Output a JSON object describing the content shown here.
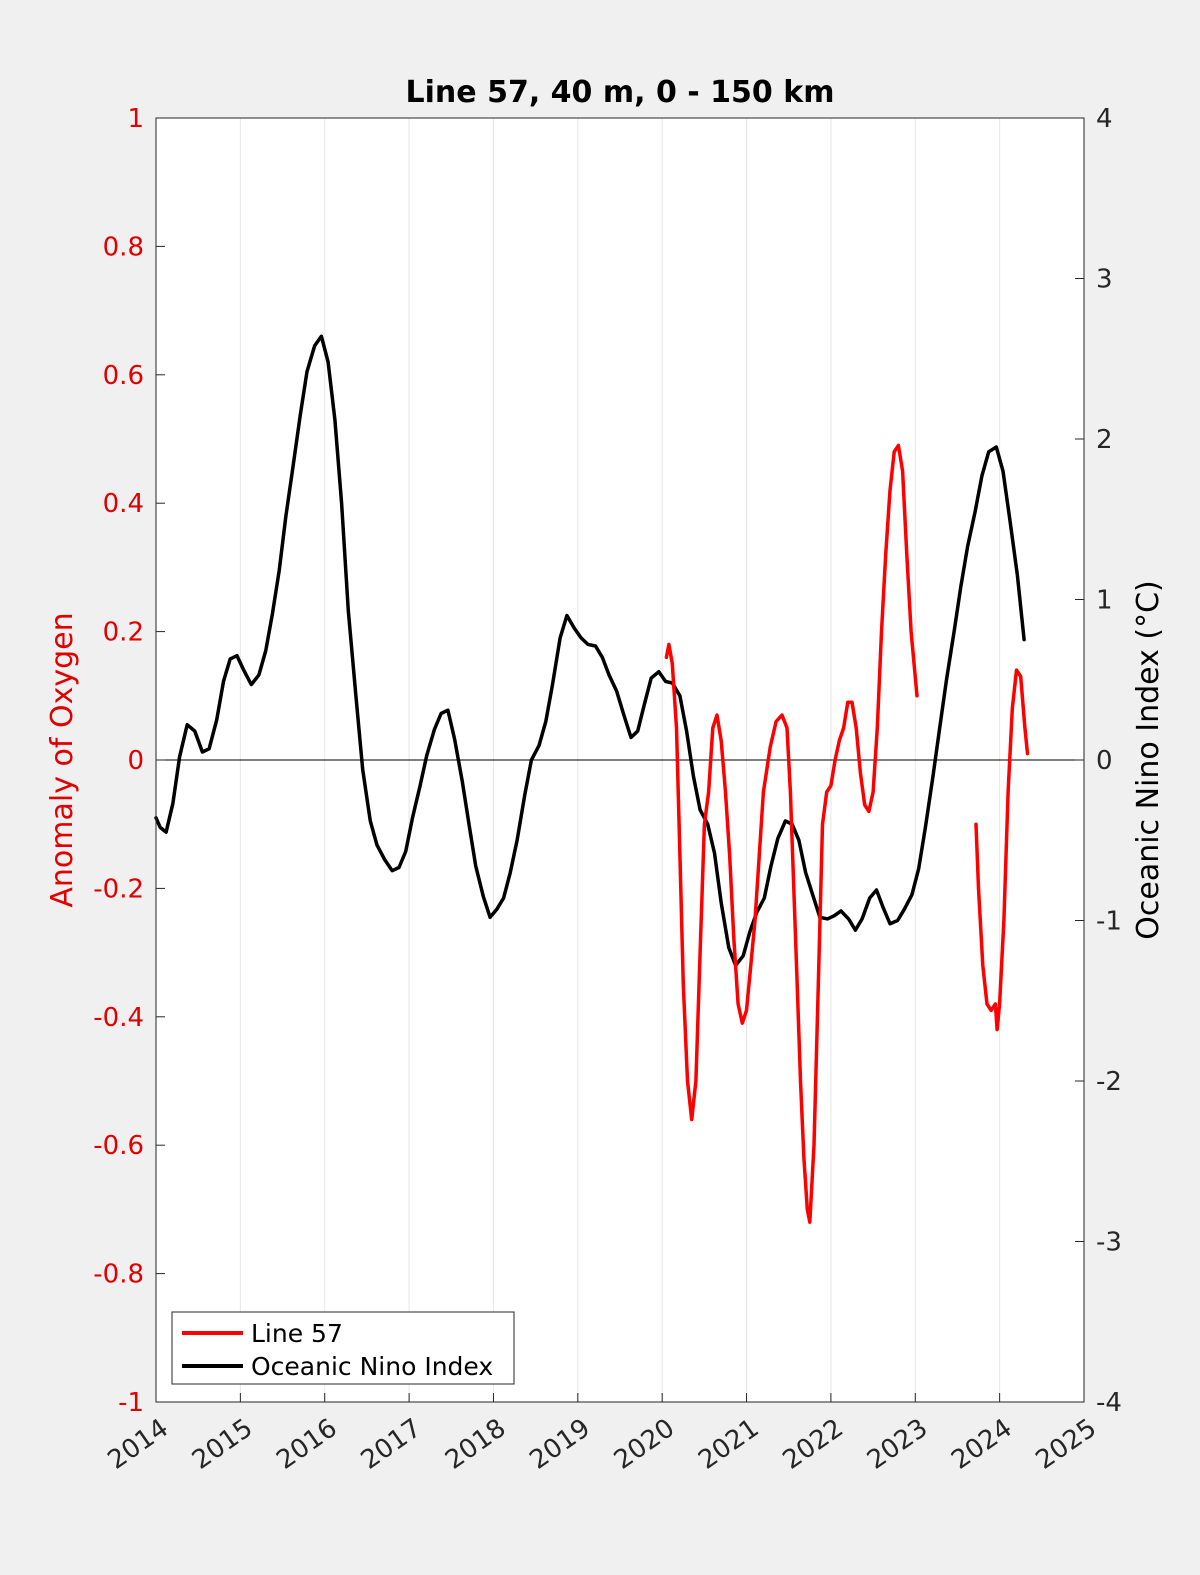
{
  "colors": {
    "figure_background": "#f0f0f0",
    "axes_background": "#ffffff",
    "line57": "#ff0000",
    "oni": "#000000",
    "left_axis_text": "#e00000",
    "right_axis_text": "#000000"
  },
  "chart_data": {
    "type": "line",
    "title": "Line 57, 40 m, 0 - 150 km",
    "xlabel": "",
    "xlim": [
      2014,
      2025
    ],
    "x_ticks": [
      "2014",
      "2015",
      "2016",
      "2017",
      "2018",
      "2019",
      "2020",
      "2021",
      "2022",
      "2023",
      "2024",
      "2025"
    ],
    "x_grid": true,
    "legend_position": "bottom-left",
    "left_axis": {
      "label": "Anomaly of Oxygen",
      "ylim": [
        -1,
        1
      ],
      "ticks": [
        "-1",
        "-0.8",
        "-0.6",
        "-0.4",
        "-0.2",
        "0",
        "0.2",
        "0.4",
        "0.6",
        "0.8",
        "1"
      ]
    },
    "right_axis": {
      "label": "Oceanic Nino Index (°C)",
      "ylim": [
        -4,
        4
      ],
      "ticks": [
        "-4",
        "-3",
        "-2",
        "-1",
        "0",
        "1",
        "2",
        "3",
        "4"
      ]
    },
    "series": [
      {
        "name": "Line 57",
        "axis": "left",
        "color": "#ff0000",
        "segments": [
          [
            [
              2020.05,
              0.16
            ],
            [
              2020.08,
              0.18
            ],
            [
              2020.12,
              0.15
            ],
            [
              2020.17,
              0.05
            ],
            [
              2020.2,
              -0.1
            ],
            [
              2020.25,
              -0.35
            ],
            [
              2020.3,
              -0.5
            ],
            [
              2020.35,
              -0.56
            ],
            [
              2020.4,
              -0.5
            ],
            [
              2020.45,
              -0.3
            ],
            [
              2020.5,
              -0.1
            ],
            [
              2020.55,
              -0.05
            ],
            [
              2020.6,
              0.05
            ],
            [
              2020.65,
              0.07
            ],
            [
              2020.7,
              0.03
            ],
            [
              2020.75,
              -0.05
            ],
            [
              2020.8,
              -0.15
            ],
            [
              2020.85,
              -0.28
            ],
            [
              2020.9,
              -0.38
            ],
            [
              2020.95,
              -0.41
            ],
            [
              2021.0,
              -0.39
            ],
            [
              2021.05,
              -0.32
            ],
            [
              2021.1,
              -0.25
            ],
            [
              2021.15,
              -0.15
            ],
            [
              2021.2,
              -0.05
            ],
            [
              2021.28,
              0.02
            ],
            [
              2021.35,
              0.06
            ],
            [
              2021.42,
              0.07
            ],
            [
              2021.48,
              0.05
            ],
            [
              2021.52,
              -0.05
            ],
            [
              2021.56,
              -0.2
            ],
            [
              2021.6,
              -0.35
            ],
            [
              2021.64,
              -0.5
            ],
            [
              2021.68,
              -0.62
            ],
            [
              2021.72,
              -0.7
            ],
            [
              2021.75,
              -0.72
            ],
            [
              2021.8,
              -0.6
            ],
            [
              2021.85,
              -0.35
            ],
            [
              2021.9,
              -0.1
            ],
            [
              2021.95,
              -0.05
            ],
            [
              2022.0,
              -0.04
            ],
            [
              2022.05,
              0.0
            ],
            [
              2022.1,
              0.03
            ],
            [
              2022.15,
              0.05
            ],
            [
              2022.2,
              0.09
            ],
            [
              2022.25,
              0.09
            ],
            [
              2022.3,
              0.05
            ],
            [
              2022.35,
              -0.02
            ],
            [
              2022.4,
              -0.07
            ],
            [
              2022.45,
              -0.08
            ],
            [
              2022.5,
              -0.05
            ],
            [
              2022.55,
              0.05
            ],
            [
              2022.6,
              0.2
            ],
            [
              2022.65,
              0.32
            ],
            [
              2022.7,
              0.42
            ],
            [
              2022.75,
              0.48
            ],
            [
              2022.8,
              0.49
            ],
            [
              2022.85,
              0.45
            ],
            [
              2022.9,
              0.32
            ],
            [
              2022.95,
              0.2
            ],
            [
              2023.02,
              0.1
            ]
          ],
          [
            [
              2023.72,
              -0.1
            ],
            [
              2023.75,
              -0.2
            ],
            [
              2023.8,
              -0.32
            ],
            [
              2023.85,
              -0.38
            ],
            [
              2023.9,
              -0.39
            ],
            [
              2023.95,
              -0.38
            ],
            [
              2023.97,
              -0.42
            ],
            [
              2024.0,
              -0.38
            ],
            [
              2024.05,
              -0.25
            ],
            [
              2024.1,
              -0.05
            ],
            [
              2024.15,
              0.08
            ],
            [
              2024.2,
              0.14
            ],
            [
              2024.25,
              0.13
            ],
            [
              2024.3,
              0.05
            ],
            [
              2024.33,
              0.01
            ]
          ]
        ]
      },
      {
        "name": "Oceanic Nino Index",
        "axis": "right",
        "color": "#000000",
        "segments": [
          [
            [
              2014.0,
              -0.36
            ],
            [
              2014.05,
              -0.42
            ],
            [
              2014.12,
              -0.45
            ],
            [
              2014.2,
              -0.27
            ],
            [
              2014.28,
              0.02
            ],
            [
              2014.37,
              0.22
            ],
            [
              2014.46,
              0.18
            ],
            [
              2014.55,
              0.05
            ],
            [
              2014.63,
              0.07
            ],
            [
              2014.72,
              0.25
            ],
            [
              2014.8,
              0.49
            ],
            [
              2014.88,
              0.63
            ],
            [
              2014.96,
              0.65
            ],
            [
              2015.04,
              0.56
            ],
            [
              2015.13,
              0.47
            ],
            [
              2015.22,
              0.53
            ],
            [
              2015.3,
              0.68
            ],
            [
              2015.38,
              0.91
            ],
            [
              2015.46,
              1.18
            ],
            [
              2015.54,
              1.52
            ],
            [
              2015.63,
              1.85
            ],
            [
              2015.71,
              2.15
            ],
            [
              2015.79,
              2.42
            ],
            [
              2015.88,
              2.58
            ],
            [
              2015.96,
              2.64
            ],
            [
              2016.04,
              2.48
            ],
            [
              2016.12,
              2.12
            ],
            [
              2016.2,
              1.6
            ],
            [
              2016.28,
              0.93
            ],
            [
              2016.37,
              0.4
            ],
            [
              2016.45,
              -0.06
            ],
            [
              2016.54,
              -0.38
            ],
            [
              2016.62,
              -0.53
            ],
            [
              2016.71,
              -0.62
            ],
            [
              2016.8,
              -0.69
            ],
            [
              2016.88,
              -0.67
            ],
            [
              2016.96,
              -0.57
            ],
            [
              2017.04,
              -0.36
            ],
            [
              2017.13,
              -0.16
            ],
            [
              2017.21,
              0.03
            ],
            [
              2017.3,
              0.19
            ],
            [
              2017.38,
              0.29
            ],
            [
              2017.46,
              0.31
            ],
            [
              2017.54,
              0.13
            ],
            [
              2017.63,
              -0.13
            ],
            [
              2017.71,
              -0.4
            ],
            [
              2017.79,
              -0.66
            ],
            [
              2017.88,
              -0.85
            ],
            [
              2017.96,
              -0.98
            ],
            [
              2018.04,
              -0.93
            ],
            [
              2018.12,
              -0.86
            ],
            [
              2018.2,
              -0.7
            ],
            [
              2018.28,
              -0.5
            ],
            [
              2018.37,
              -0.22
            ],
            [
              2018.45,
              0.0
            ],
            [
              2018.54,
              0.09
            ],
            [
              2018.62,
              0.24
            ],
            [
              2018.7,
              0.47
            ],
            [
              2018.79,
              0.76
            ],
            [
              2018.87,
              0.9
            ],
            [
              2018.96,
              0.82
            ],
            [
              2019.04,
              0.76
            ],
            [
              2019.12,
              0.72
            ],
            [
              2019.21,
              0.71
            ],
            [
              2019.29,
              0.64
            ],
            [
              2019.37,
              0.53
            ],
            [
              2019.46,
              0.43
            ],
            [
              2019.54,
              0.29
            ],
            [
              2019.63,
              0.14
            ],
            [
              2019.71,
              0.18
            ],
            [
              2019.79,
              0.35
            ],
            [
              2019.87,
              0.51
            ],
            [
              2019.96,
              0.55
            ],
            [
              2020.04,
              0.49
            ],
            [
              2020.12,
              0.48
            ],
            [
              2020.21,
              0.4
            ],
            [
              2020.29,
              0.18
            ],
            [
              2020.37,
              -0.1
            ],
            [
              2020.45,
              -0.31
            ],
            [
              2020.54,
              -0.4
            ],
            [
              2020.62,
              -0.58
            ],
            [
              2020.7,
              -0.89
            ],
            [
              2020.79,
              -1.17
            ],
            [
              2020.87,
              -1.28
            ],
            [
              2020.96,
              -1.22
            ],
            [
              2021.04,
              -1.07
            ],
            [
              2021.12,
              -0.95
            ],
            [
              2021.21,
              -0.86
            ],
            [
              2021.29,
              -0.66
            ],
            [
              2021.37,
              -0.49
            ],
            [
              2021.46,
              -0.38
            ],
            [
              2021.54,
              -0.4
            ],
            [
              2021.62,
              -0.5
            ],
            [
              2021.7,
              -0.7
            ],
            [
              2021.79,
              -0.85
            ],
            [
              2021.87,
              -0.98
            ],
            [
              2021.96,
              -0.99
            ],
            [
              2022.04,
              -0.97
            ],
            [
              2022.12,
              -0.94
            ],
            [
              2022.21,
              -0.99
            ],
            [
              2022.29,
              -1.06
            ],
            [
              2022.37,
              -0.99
            ],
            [
              2022.46,
              -0.86
            ],
            [
              2022.54,
              -0.81
            ],
            [
              2022.62,
              -0.92
            ],
            [
              2022.7,
              -1.02
            ],
            [
              2022.79,
              -1.0
            ],
            [
              2022.87,
              -0.93
            ],
            [
              2022.96,
              -0.84
            ],
            [
              2023.04,
              -0.68
            ],
            [
              2023.12,
              -0.42
            ],
            [
              2023.21,
              -0.1
            ],
            [
              2023.29,
              0.2
            ],
            [
              2023.37,
              0.5
            ],
            [
              2023.46,
              0.8
            ],
            [
              2023.54,
              1.08
            ],
            [
              2023.62,
              1.33
            ],
            [
              2023.71,
              1.55
            ],
            [
              2023.79,
              1.77
            ],
            [
              2023.87,
              1.92
            ],
            [
              2023.96,
              1.95
            ],
            [
              2024.04,
              1.8
            ],
            [
              2024.12,
              1.5
            ],
            [
              2024.21,
              1.15
            ],
            [
              2024.29,
              0.75
            ]
          ]
        ]
      }
    ]
  }
}
